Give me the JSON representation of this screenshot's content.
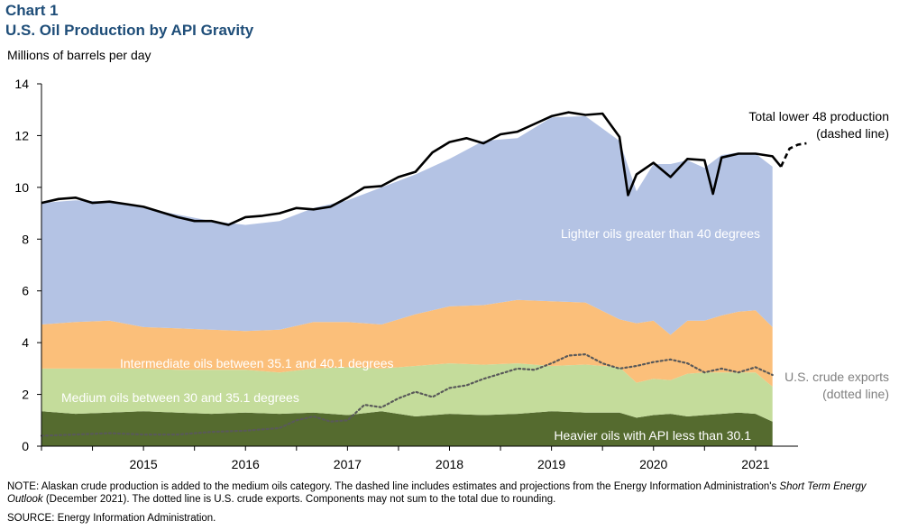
{
  "header": {
    "chart_number": "Chart 1",
    "title": "U.S. Oil Production by API Gravity",
    "units": "Millions of barrels per day"
  },
  "footer": {
    "note_prefix": "NOTE: Alaskan crude production is added to the medium oils category. The dashed line includes estimates and projections from the Energy Information Administration's ",
    "note_italic": "Short Term Energy Outlook",
    "note_suffix": " (December 2021). The dotted line is U.S. crude exports. Components may not sum to the total due to rounding.",
    "source": "SOURCE: Energy Information Administration."
  },
  "colors": {
    "heavy": "#556b2f",
    "medium": "#c4dc9b",
    "intermediate": "#fbbf7a",
    "light": "#b4c3e4",
    "total": "#000000",
    "exports": "#595959",
    "title": "#1f4e79"
  },
  "chart_data": {
    "type": "area",
    "ylabel": "Millions of barrels per day",
    "ylim": [
      0,
      14
    ],
    "yticks": [
      0,
      2,
      4,
      6,
      8,
      10,
      12,
      14
    ],
    "xlim": [
      "2014-07",
      "2021-12"
    ],
    "xticks": [
      "2015",
      "2016",
      "2017",
      "2018",
      "2019",
      "2020",
      "2021"
    ],
    "grid": false,
    "series": [
      {
        "key": "heavy",
        "name": "Heavier oils with API less than 30.1",
        "x": [
          "2014-07",
          "2014-11",
          "2015-03",
          "2015-07",
          "2015-11",
          "2016-03",
          "2016-07",
          "2016-11",
          "2017-03",
          "2017-07",
          "2017-11",
          "2018-03",
          "2018-07",
          "2018-11",
          "2019-03",
          "2019-07",
          "2019-11",
          "2020-03",
          "2020-05",
          "2020-07",
          "2020-09",
          "2020-11",
          "2021-01",
          "2021-03",
          "2021-05",
          "2021-07",
          "2021-09"
        ],
        "values": [
          1.35,
          1.25,
          1.3,
          1.35,
          1.3,
          1.25,
          1.3,
          1.25,
          1.3,
          1.2,
          1.35,
          1.15,
          1.25,
          1.2,
          1.25,
          1.35,
          1.3,
          1.3,
          1.1,
          1.2,
          1.25,
          1.15,
          1.2,
          1.25,
          1.3,
          1.25,
          0.95
        ]
      },
      {
        "key": "medium",
        "name": "Medium oils between 30 and 35.1 degrees",
        "x": [
          "2014-07",
          "2014-11",
          "2015-03",
          "2015-07",
          "2015-11",
          "2016-03",
          "2016-07",
          "2016-11",
          "2017-03",
          "2017-07",
          "2017-11",
          "2018-03",
          "2018-07",
          "2018-11",
          "2019-03",
          "2019-07",
          "2019-11",
          "2020-03",
          "2020-05",
          "2020-07",
          "2020-09",
          "2020-11",
          "2021-01",
          "2021-03",
          "2021-05",
          "2021-07",
          "2021-09"
        ],
        "values": [
          1.65,
          1.75,
          1.7,
          1.65,
          1.65,
          1.7,
          1.65,
          1.6,
          1.7,
          1.85,
          1.65,
          1.95,
          1.95,
          1.95,
          1.95,
          1.75,
          1.85,
          1.75,
          1.35,
          1.4,
          1.3,
          1.65,
          1.65,
          1.6,
          1.55,
          1.6,
          1.35
        ]
      },
      {
        "key": "intermediate",
        "name": "Intermediate oils between 35.1 and 40.1 degrees",
        "x": [
          "2014-07",
          "2014-11",
          "2015-03",
          "2015-07",
          "2015-11",
          "2016-03",
          "2016-07",
          "2016-11",
          "2017-03",
          "2017-07",
          "2017-11",
          "2018-03",
          "2018-07",
          "2018-11",
          "2019-03",
          "2019-07",
          "2019-11",
          "2020-03",
          "2020-05",
          "2020-07",
          "2020-09",
          "2020-11",
          "2021-01",
          "2021-03",
          "2021-05",
          "2021-07",
          "2021-09"
        ],
        "values": [
          1.7,
          1.8,
          1.85,
          1.6,
          1.6,
          1.55,
          1.5,
          1.65,
          1.8,
          1.75,
          1.7,
          2.0,
          2.2,
          2.3,
          2.45,
          2.5,
          2.4,
          1.85,
          2.3,
          2.25,
          1.75,
          2.05,
          2.0,
          2.2,
          2.35,
          2.4,
          2.3
        ]
      },
      {
        "key": "light",
        "name": "Lighter oils greater than 40 degrees",
        "x": [
          "2014-07",
          "2014-11",
          "2015-03",
          "2015-07",
          "2015-11",
          "2016-03",
          "2016-07",
          "2016-11",
          "2017-03",
          "2017-07",
          "2017-11",
          "2018-03",
          "2018-07",
          "2018-11",
          "2019-03",
          "2019-07",
          "2019-11",
          "2020-03",
          "2020-05",
          "2020-07",
          "2020-09",
          "2020-11",
          "2021-01",
          "2021-03",
          "2021-05",
          "2021-07",
          "2021-09"
        ],
        "values": [
          4.7,
          4.7,
          4.6,
          4.6,
          4.4,
          4.2,
          4.1,
          4.2,
          4.4,
          4.7,
          5.3,
          5.4,
          5.7,
          6.35,
          6.25,
          7.1,
          7.2,
          6.9,
          5.1,
          6.05,
          6.6,
          6.2,
          5.9,
          6.2,
          6.15,
          6.05,
          6.2
        ]
      }
    ],
    "total": {
      "name": "Total lower 48 production",
      "sublabel": "(dashed line)",
      "x": [
        "2014-07",
        "2014-09",
        "2014-11",
        "2015-01",
        "2015-03",
        "2015-05",
        "2015-07",
        "2015-09",
        "2015-11",
        "2016-01",
        "2016-03",
        "2016-05",
        "2016-07",
        "2016-09",
        "2016-11",
        "2017-01",
        "2017-03",
        "2017-05",
        "2017-07",
        "2017-09",
        "2017-11",
        "2018-01",
        "2018-03",
        "2018-05",
        "2018-07",
        "2018-09",
        "2018-11",
        "2019-01",
        "2019-03",
        "2019-05",
        "2019-07",
        "2019-09",
        "2019-11",
        "2020-01",
        "2020-03",
        "2020-04",
        "2020-05",
        "2020-07",
        "2020-09",
        "2020-11",
        "2021-01",
        "2021-02",
        "2021-03",
        "2021-05",
        "2021-07",
        "2021-09",
        "2021-10"
      ],
      "values": [
        9.4,
        9.55,
        9.6,
        9.4,
        9.45,
        9.35,
        9.25,
        9.05,
        8.85,
        8.7,
        8.7,
        8.55,
        8.85,
        8.9,
        9.0,
        9.2,
        9.15,
        9.25,
        9.6,
        10.0,
        10.05,
        10.4,
        10.6,
        11.35,
        11.75,
        11.9,
        11.7,
        12.05,
        12.15,
        12.45,
        12.75,
        12.9,
        12.8,
        12.85,
        11.95,
        9.7,
        10.5,
        10.95,
        10.4,
        11.1,
        11.05,
        9.75,
        11.15,
        11.3,
        11.3,
        11.2,
        10.8
      ]
    },
    "total_projection": {
      "x": [
        "2021-10",
        "2021-11",
        "2021-12",
        "2022-01"
      ],
      "values": [
        10.8,
        11.5,
        11.65,
        11.7
      ]
    },
    "exports": {
      "name": "U.S. crude exports",
      "sublabel": "(dotted line)",
      "x": [
        "2014-07",
        "2014-11",
        "2015-03",
        "2015-07",
        "2015-11",
        "2016-03",
        "2016-07",
        "2016-11",
        "2017-01",
        "2017-03",
        "2017-05",
        "2017-07",
        "2017-09",
        "2017-11",
        "2018-01",
        "2018-03",
        "2018-05",
        "2018-07",
        "2018-09",
        "2018-11",
        "2019-01",
        "2019-03",
        "2019-05",
        "2019-07",
        "2019-09",
        "2019-11",
        "2020-01",
        "2020-03",
        "2020-05",
        "2020-07",
        "2020-09",
        "2020-11",
        "2021-01",
        "2021-03",
        "2021-05",
        "2021-07",
        "2021-09"
      ],
      "values": [
        0.4,
        0.45,
        0.5,
        0.45,
        0.45,
        0.55,
        0.6,
        0.7,
        1.0,
        1.15,
        0.95,
        1.0,
        1.6,
        1.5,
        1.85,
        2.1,
        1.9,
        2.25,
        2.35,
        2.6,
        2.8,
        3.0,
        2.95,
        3.2,
        3.5,
        3.55,
        3.2,
        3.0,
        3.1,
        3.25,
        3.35,
        3.2,
        2.85,
        3.0,
        2.85,
        3.05,
        2.75
      ]
    },
    "annotations": {
      "light": "Lighter oils greater than 40 degrees",
      "intermediate": "Intermediate oils between 35.1 and 40.1 degrees",
      "medium": "Medium oils between 30 and 35.1 degrees",
      "heavy": "Heavier oils with API less than 30.1"
    }
  }
}
